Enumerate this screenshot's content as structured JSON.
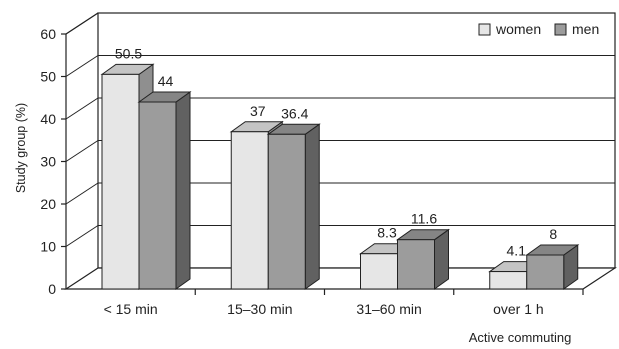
{
  "chart_data": {
    "type": "bar",
    "title": "",
    "xlabel": "Active commuting",
    "ylabel": "Study group (%)",
    "ylim": [
      0,
      60
    ],
    "yticks": [
      0,
      10,
      20,
      30,
      40,
      50,
      60
    ],
    "categories": [
      "< 15 min",
      "15–30 min",
      "31–60 min",
      "over 1 h"
    ],
    "series": [
      {
        "name": "women",
        "values": [
          50.5,
          37,
          8.3,
          4.1
        ],
        "value_labels": [
          "50.5",
          "37",
          "8.3",
          "4.1"
        ],
        "color": "#e6e6e6"
      },
      {
        "name": "men",
        "values": [
          44,
          36.4,
          11.6,
          8
        ],
        "value_labels": [
          "44",
          "36.4",
          "11.6",
          "8"
        ],
        "color": "#9c9c9c"
      }
    ],
    "grid": true,
    "legend_position": "top-right",
    "style": "3d"
  }
}
